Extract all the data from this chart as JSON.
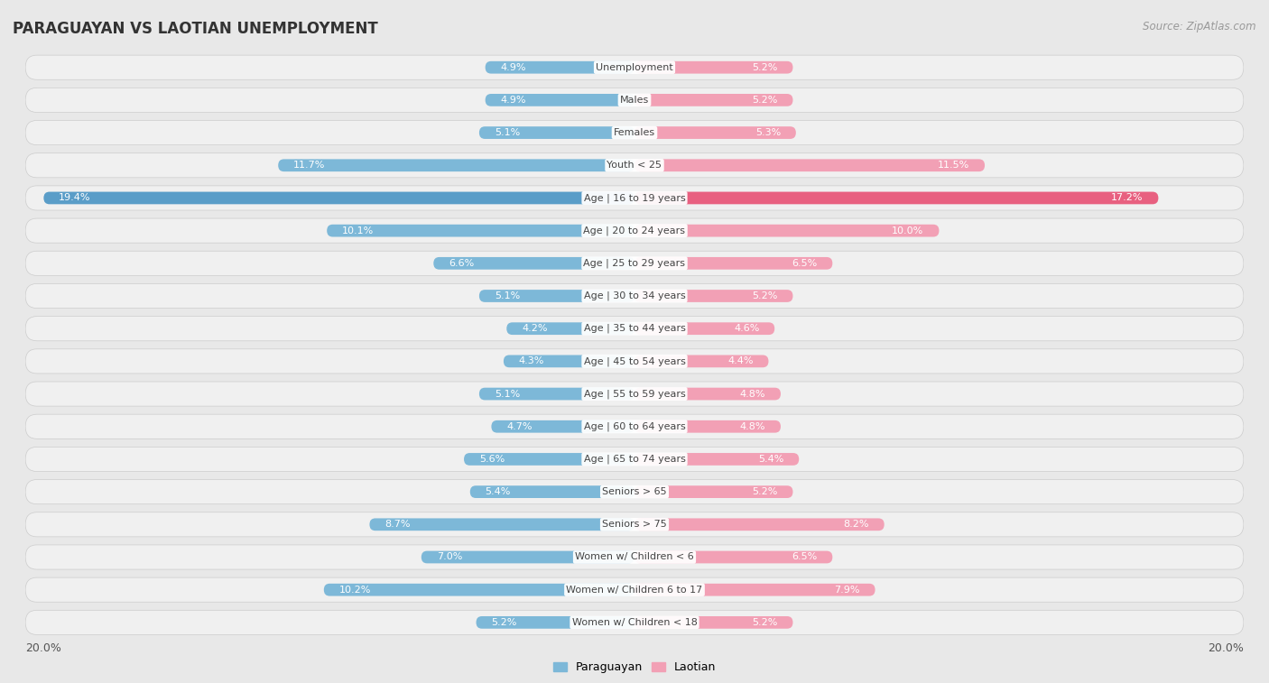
{
  "title": "PARAGUAYAN VS LAOTIAN UNEMPLOYMENT",
  "source": "Source: ZipAtlas.com",
  "categories": [
    "Unemployment",
    "Males",
    "Females",
    "Youth < 25",
    "Age | 16 to 19 years",
    "Age | 20 to 24 years",
    "Age | 25 to 29 years",
    "Age | 30 to 34 years",
    "Age | 35 to 44 years",
    "Age | 45 to 54 years",
    "Age | 55 to 59 years",
    "Age | 60 to 64 years",
    "Age | 65 to 74 years",
    "Seniors > 65",
    "Seniors > 75",
    "Women w/ Children < 6",
    "Women w/ Children 6 to 17",
    "Women w/ Children < 18"
  ],
  "paraguayan": [
    4.9,
    4.9,
    5.1,
    11.7,
    19.4,
    10.1,
    6.6,
    5.1,
    4.2,
    4.3,
    5.1,
    4.7,
    5.6,
    5.4,
    8.7,
    7.0,
    10.2,
    5.2
  ],
  "laotian": [
    5.2,
    5.2,
    5.3,
    11.5,
    17.2,
    10.0,
    6.5,
    5.2,
    4.6,
    4.4,
    4.8,
    4.8,
    5.4,
    5.2,
    8.2,
    6.5,
    7.9,
    5.2
  ],
  "paraguayan_color": "#7db8d8",
  "laotian_color": "#f2a0b5",
  "highlight_paraguayan_color": "#5a9dc8",
  "highlight_laotian_color": "#e86080",
  "max_val": 20.0,
  "bg_color": "#e8e8e8",
  "row_bg_color": "#dcdcdc",
  "row_inner_color": "#f0f0f0",
  "legend_paraguayan": "Paraguayan",
  "legend_laotian": "Laotian",
  "label_color_inside": "#ffffff",
  "label_color_outside": "#555555",
  "cat_label_color": "#444444",
  "title_color": "#333333",
  "source_color": "#999999"
}
